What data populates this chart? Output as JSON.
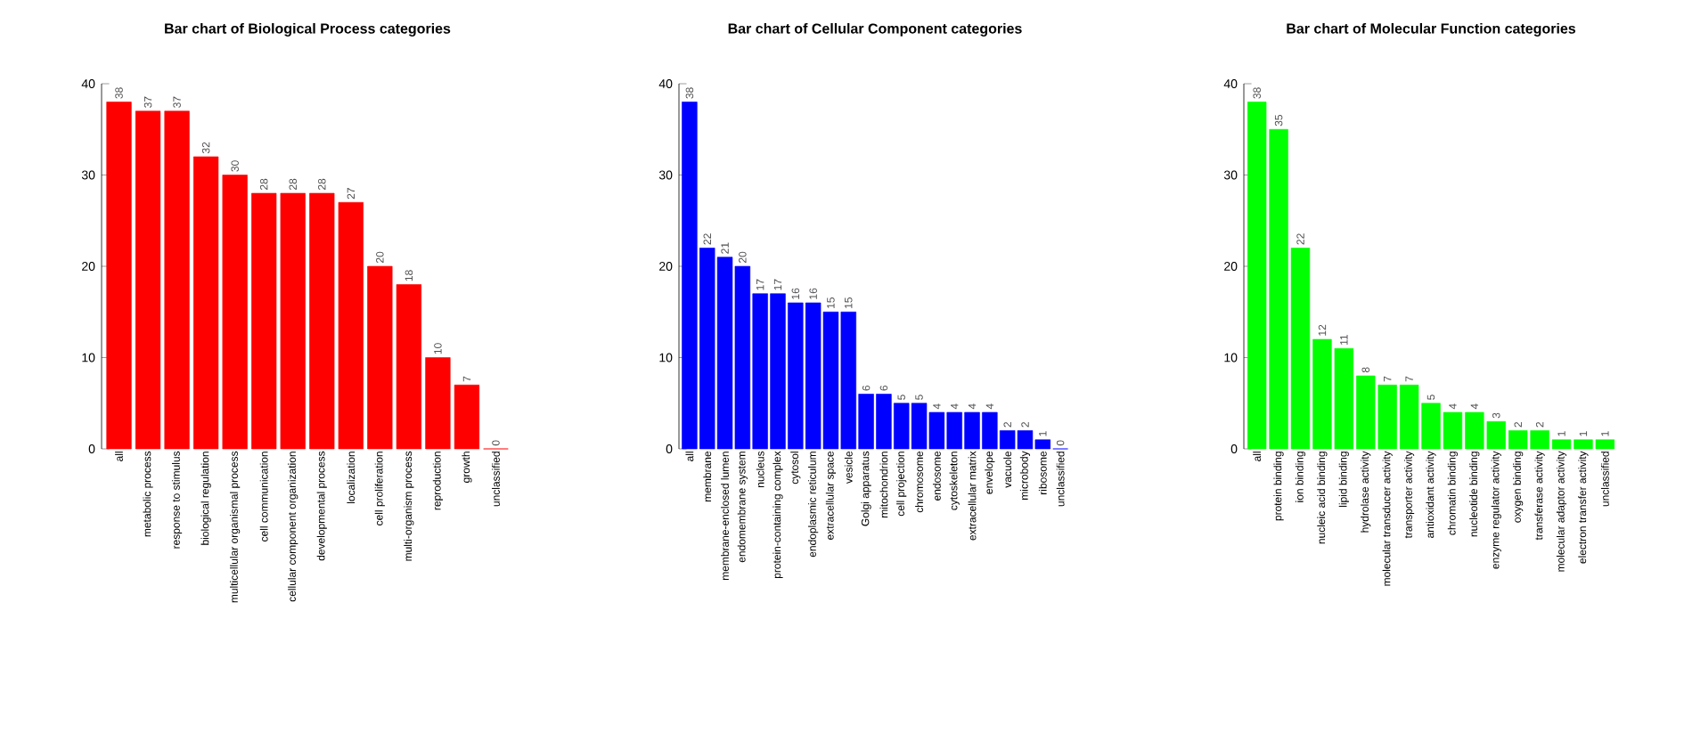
{
  "chart_data": [
    {
      "type": "bar",
      "title": "Bar chart of Biological Process categories",
      "categories": [
        "all",
        "metabolic process",
        "response to stimulus",
        "biological regulation",
        "multicellular organismal process",
        "cell communication",
        "cellular component organization",
        "developmental process",
        "localization",
        "cell proliferation",
        "multi-organism process",
        "reproduction",
        "growth",
        "unclassified"
      ],
      "values": [
        38,
        37,
        37,
        32,
        30,
        28,
        28,
        28,
        27,
        20,
        18,
        10,
        7,
        0
      ],
      "color": "#ff0000",
      "ylim": [
        0,
        40
      ],
      "yticks": [
        0,
        10,
        20,
        30,
        40
      ],
      "data_labels": true
    },
    {
      "type": "bar",
      "title": "Bar chart of Cellular Component categories",
      "categories": [
        "all",
        "membrane",
        "membrane-enclosed lumen",
        "endomembrane system",
        "nucleus",
        "protein-containing complex",
        "cytosol",
        "endoplasmic reticulum",
        "extracellular space",
        "vesicle",
        "Golgi apparatus",
        "mitochondrion",
        "cell projection",
        "chromosome",
        "endosome",
        "cytoskeleton",
        "extracellular matrix",
        "envelope",
        "vacuole",
        "microbody",
        "ribosome",
        "unclassified"
      ],
      "values": [
        38,
        22,
        21,
        20,
        17,
        17,
        16,
        16,
        15,
        15,
        6,
        6,
        5,
        5,
        4,
        4,
        4,
        4,
        2,
        2,
        1,
        0
      ],
      "color": "#0000ff",
      "ylim": [
        0,
        40
      ],
      "yticks": [
        0,
        10,
        20,
        30,
        40
      ],
      "data_labels": true
    },
    {
      "type": "bar",
      "title": "Bar chart of Molecular Function categories",
      "categories": [
        "all",
        "protein binding",
        "ion binding",
        "nucleic acid binding",
        "lipid binding",
        "hydrolase activity",
        "molecular transducer activity",
        "transporter activity",
        "antioxidant activity",
        "chromatin binding",
        "nucleotide binding",
        "enzyme regulator activity",
        "oxygen binding",
        "transferase activity",
        "molecular adaptor activity",
        "electron transfer activity",
        "unclassified"
      ],
      "values": [
        38,
        35,
        22,
        12,
        11,
        8,
        7,
        7,
        5,
        4,
        4,
        3,
        2,
        2,
        1,
        1,
        1
      ],
      "color": "#00ff00",
      "ylim": [
        0,
        40
      ],
      "yticks": [
        0,
        10,
        20,
        30,
        40
      ],
      "data_labels": true
    }
  ]
}
